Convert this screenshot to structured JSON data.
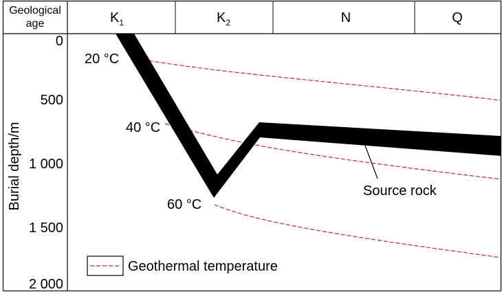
{
  "header": {
    "corner_line1": "Geological",
    "corner_line2": "age",
    "periods": [
      {
        "base": "K",
        "sub": "1"
      },
      {
        "base": "K",
        "sub": "2"
      },
      {
        "base": "N",
        "sub": ""
      },
      {
        "base": "Q",
        "sub": ""
      }
    ]
  },
  "axis": {
    "ylabel": "Burial depth/m",
    "ticks": [
      "0",
      "500",
      "1 000",
      "1 500",
      "2 000"
    ]
  },
  "isotherms": [
    "20 °C",
    "40 °C",
    "60 °C"
  ],
  "annotation": {
    "label": "Source rock"
  },
  "legend": {
    "label": "Geothermal temperature"
  },
  "colors": {
    "isotherm": "#d42020",
    "burial_curve": "#000000",
    "frame": "#000000"
  }
}
